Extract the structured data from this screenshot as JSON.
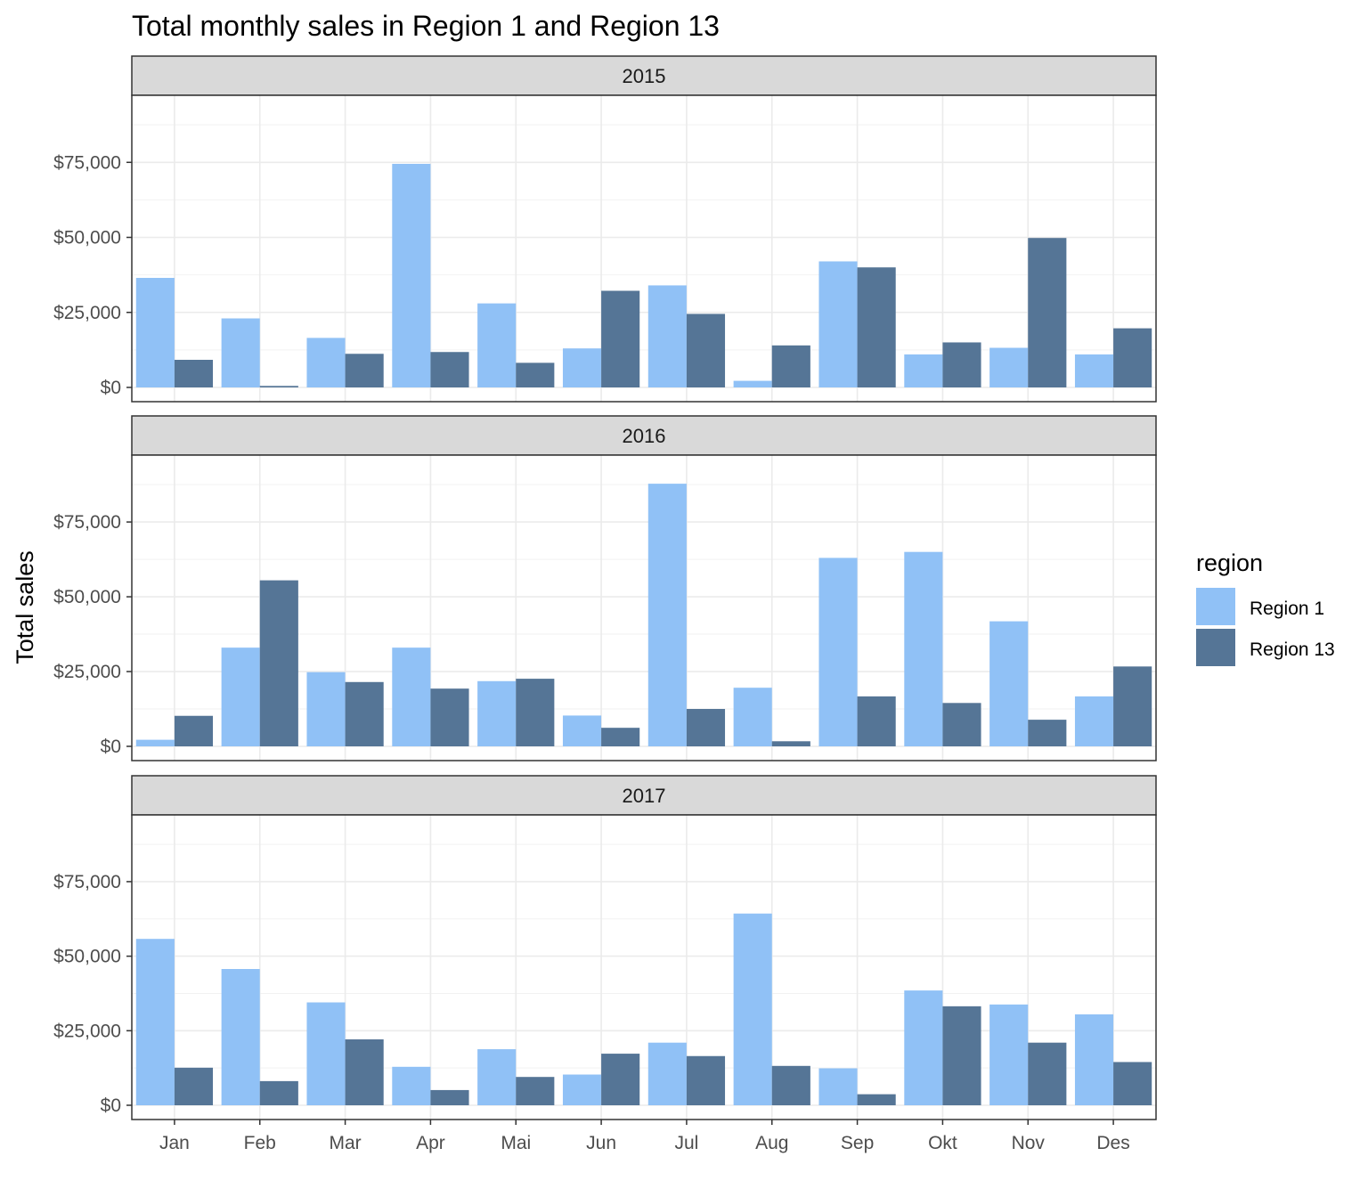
{
  "chart_data": {
    "type": "bar",
    "title": "Total monthly sales in Region 1 and Region 13",
    "xlabel": "",
    "ylabel": "Total sales",
    "ylim": [
      0,
      92000
    ],
    "y_ticks": [
      0,
      25000,
      50000,
      75000
    ],
    "y_tick_labels": [
      "$0",
      "$25,000",
      "$50,000",
      "$75,000"
    ],
    "grid": true,
    "legend": {
      "title": "region",
      "placement": "right",
      "entries": [
        "Region 1",
        "Region 13"
      ]
    },
    "categories": [
      "Jan",
      "Feb",
      "Mar",
      "Apr",
      "Mai",
      "Jun",
      "Jul",
      "Aug",
      "Sep",
      "Okt",
      "Nov",
      "Des"
    ],
    "colors": {
      "Region 1": "#90c1f6",
      "Region 13": "#557596"
    },
    "facets": [
      {
        "label": "2015",
        "series": [
          {
            "name": "Region 1",
            "values": [
              36500,
              23000,
              16500,
              74500,
              28000,
              13000,
              34000,
              2200,
              42000,
              11000,
              13200,
              11000
            ]
          },
          {
            "name": "Region 13",
            "values": [
              9200,
              500,
              11200,
              11800,
              8200,
              32200,
              24500,
              14000,
              40000,
              15000,
              49800,
              19700
            ]
          }
        ]
      },
      {
        "label": "2016",
        "series": [
          {
            "name": "Region 1",
            "values": [
              2200,
              33000,
              24800,
              33000,
              21800,
              10300,
              87800,
              19600,
              63000,
              65000,
              41800,
              16700
            ]
          },
          {
            "name": "Region 13",
            "values": [
              10200,
              55500,
              21500,
              19300,
              22600,
              6200,
              12500,
              1700,
              16700,
              14500,
              8900,
              26700
            ]
          }
        ]
      },
      {
        "label": "2017",
        "series": [
          {
            "name": "Region 1",
            "values": [
              55800,
              45700,
              34500,
              12900,
              18800,
              10300,
              21000,
              64300,
              12400,
              38500,
              33800,
              30500
            ]
          },
          {
            "name": "Region 13",
            "values": [
              12600,
              8100,
              22100,
              5100,
              9500,
              17300,
              16500,
              13200,
              3700,
              33200,
              21000,
              14500
            ]
          }
        ]
      }
    ]
  }
}
